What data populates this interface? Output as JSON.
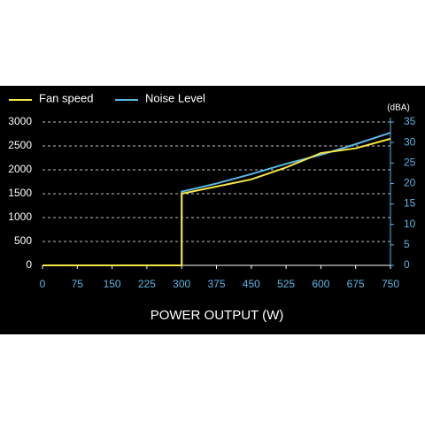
{
  "chart_data": {
    "type": "line",
    "x_label": "POWER OUTPUT (W)",
    "y2_label": "(dBA)",
    "x": [
      0,
      75,
      150,
      225,
      300,
      300,
      375,
      450,
      525,
      600,
      675,
      750
    ],
    "series": [
      {
        "name": "Fan speed",
        "color": "#f2e646",
        "values": [
          0,
          0,
          0,
          0,
          0,
          1500,
          1650,
          1800,
          2050,
          2350,
          2450,
          2650
        ]
      },
      {
        "name": "Noise Level",
        "color": "#5ab6e4",
        "axis": "y2",
        "values": [
          0,
          0,
          0,
          0,
          0,
          18,
          20,
          22.3,
          24.8,
          27,
          29.6,
          32.4
        ]
      }
    ],
    "xlim": [
      0,
      750
    ],
    "xticks": [
      0,
      75,
      150,
      225,
      300,
      375,
      450,
      525,
      600,
      675,
      750
    ],
    "ylim": [
      0,
      3000
    ],
    "yticks": [
      0,
      500,
      1000,
      1500,
      2000,
      2500,
      3000
    ],
    "y2lim": [
      0,
      35
    ],
    "y2ticks": [
      0,
      5,
      10,
      15,
      20,
      25,
      30,
      35
    ],
    "grid": true
  }
}
